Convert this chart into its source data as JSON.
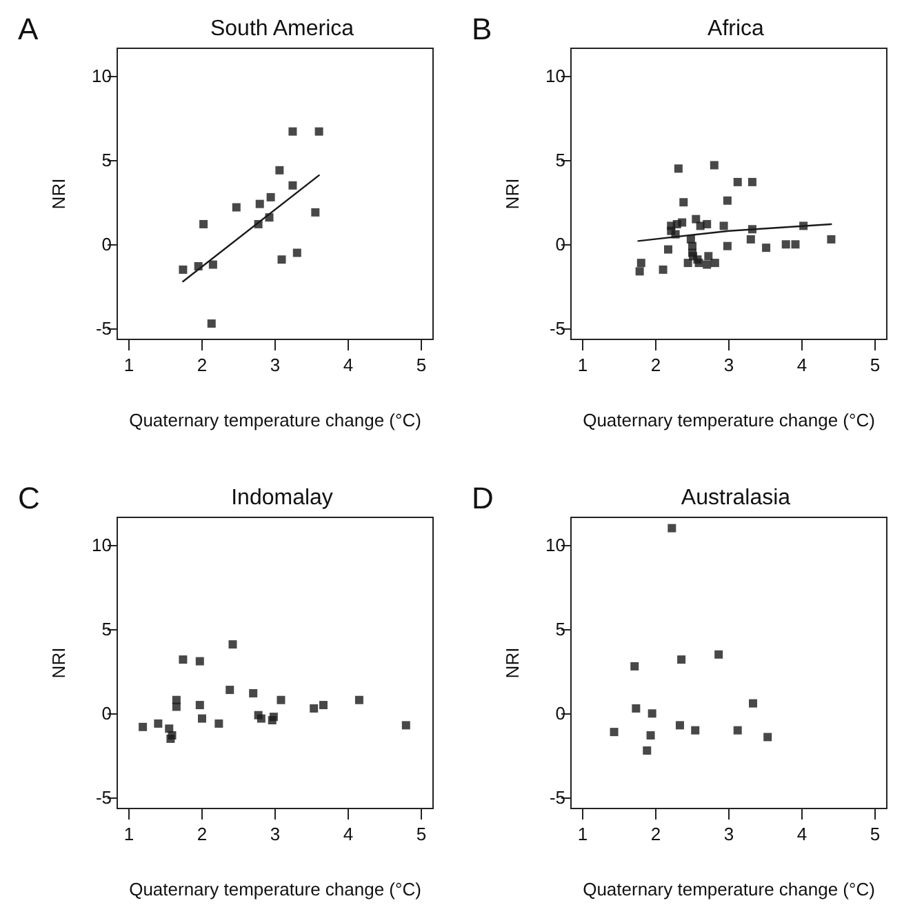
{
  "chart_data": [
    {
      "type": "scatter",
      "title": "South America",
      "xlabel": "Quaternary temperature change (°C)",
      "ylabel": "NRI",
      "annotations": [
        "A"
      ],
      "xlim": [
        0.84,
        5.16
      ],
      "ylim": [
        -5.64,
        11.64
      ],
      "xticks": [
        1,
        2,
        3,
        4,
        5
      ],
      "yticks": [
        -5,
        0,
        5,
        10
      ],
      "grid": false,
      "line_style": "solid",
      "series": [
        {
          "color": "#1a1a1a",
          "marker": "square",
          "x": [
            1.74,
            1.95,
            2.02,
            2.15,
            2.13,
            2.47,
            2.77,
            2.79,
            2.92,
            2.94,
            3.06,
            3.09,
            3.24,
            3.24,
            3.3,
            3.55,
            3.6
          ],
          "values": [
            -1.5,
            -1.3,
            1.2,
            -1.2,
            -4.7,
            2.2,
            1.2,
            2.4,
            1.6,
            2.8,
            4.4,
            -0.9,
            6.7,
            3.5,
            -0.5,
            1.9,
            6.7
          ]
        },
        {
          "type": "line",
          "color": "#1a1a1a",
          "x": [
            1.74,
            3.6
          ],
          "values": [
            -2.2,
            4.1
          ]
        }
      ]
    },
    {
      "type": "scatter",
      "title": "Africa",
      "xlabel": "Quaternary temperature change (°C)",
      "ylabel": "NRI",
      "annotations": [
        "B"
      ],
      "xlim": [
        0.84,
        5.16
      ],
      "ylim": [
        -5.64,
        11.64
      ],
      "xticks": [
        1,
        2,
        3,
        4,
        5
      ],
      "yticks": [
        -5,
        0,
        5,
        10
      ],
      "grid": false,
      "line_style": "solid",
      "series": [
        {
          "color": "#1a1a1a",
          "marker": "square",
          "x": [
            1.78,
            1.8,
            2.1,
            2.17,
            2.21,
            2.21,
            2.27,
            2.29,
            2.31,
            2.36,
            2.38,
            2.44,
            2.48,
            2.5,
            2.5,
            2.51,
            2.55,
            2.57,
            2.59,
            2.61,
            2.7,
            2.7,
            2.72,
            2.8,
            2.81,
            2.93,
            2.98,
            2.98,
            3.12,
            3.3,
            3.32,
            3.32,
            3.51,
            3.78,
            3.91,
            4.02,
            4.4
          ],
          "values": [
            -1.6,
            -1.1,
            -1.5,
            -0.3,
            1.1,
            0.8,
            0.6,
            1.2,
            4.5,
            1.3,
            2.5,
            -1.1,
            0.3,
            -0.1,
            -0.5,
            -0.7,
            1.5,
            -0.9,
            -1.1,
            1.1,
            1.2,
            -1.2,
            -0.7,
            4.7,
            -1.1,
            1.1,
            2.6,
            -0.1,
            3.7,
            0.3,
            0.9,
            3.7,
            -0.2,
            0,
            0,
            1.1,
            0.3
          ]
        },
        {
          "type": "line",
          "color": "#1a1a1a",
          "x": [
            1.76,
            3.0,
            4.4
          ],
          "values": [
            0.2,
            0.8,
            1.2
          ]
        }
      ]
    },
    {
      "type": "scatter",
      "title": "Indomalay",
      "xlabel": "Quaternary temperature change (°C)",
      "ylabel": "NRI",
      "annotations": [
        "C"
      ],
      "xlim": [
        0.84,
        5.16
      ],
      "ylim": [
        -5.64,
        11.64
      ],
      "xticks": [
        1,
        2,
        3,
        4,
        5
      ],
      "yticks": [
        -5,
        0,
        5,
        10
      ],
      "grid": false,
      "series": [
        {
          "color": "#1a1a1a",
          "marker": "square",
          "x": [
            1.19,
            1.4,
            1.55,
            1.57,
            1.59,
            1.65,
            1.65,
            1.74,
            1.97,
            1.97,
            2.0,
            2.23,
            2.38,
            2.42,
            2.7,
            2.77,
            2.81,
            2.96,
            2.98,
            3.08,
            3.53,
            3.66,
            4.15,
            4.79
          ],
          "values": [
            -0.8,
            -0.6,
            -0.9,
            -1.5,
            -1.3,
            0.8,
            0.4,
            3.2,
            3.1,
            0.5,
            -0.3,
            -0.6,
            1.4,
            4.1,
            1.2,
            -0.1,
            -0.3,
            -0.4,
            -0.2,
            0.8,
            0.3,
            0.5,
            0.8,
            -0.7
          ]
        }
      ]
    },
    {
      "type": "scatter",
      "title": "Australasia",
      "xlabel": "Quaternary temperature change (°C)",
      "ylabel": "NRI",
      "annotations": [
        "D"
      ],
      "xlim": [
        0.84,
        5.16
      ],
      "ylim": [
        -5.64,
        11.64
      ],
      "xticks": [
        1,
        2,
        3,
        4,
        5
      ],
      "yticks": [
        -5,
        0,
        5,
        10
      ],
      "grid": false,
      "series": [
        {
          "color": "#1a1a1a",
          "marker": "square",
          "x": [
            1.43,
            1.71,
            1.73,
            1.88,
            1.93,
            1.95,
            2.22,
            2.33,
            2.35,
            2.54,
            2.86,
            3.12,
            3.33,
            3.53
          ],
          "values": [
            -1.1,
            2.8,
            0.3,
            -2.2,
            -1.3,
            0,
            11,
            -0.7,
            3.2,
            -1,
            3.5,
            -1,
            0.6,
            -1.4
          ]
        }
      ]
    }
  ]
}
